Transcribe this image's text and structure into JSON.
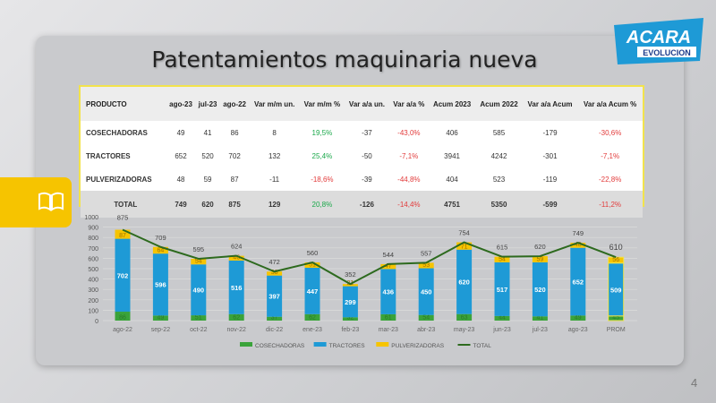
{
  "title": "Patentamientos maquinaria nueva",
  "logo": {
    "text1": "ACARA",
    "text2": "EVOLUCION"
  },
  "page_number": "4",
  "table": {
    "headers": [
      "PRODUCTO",
      "ago-23",
      "jul-23",
      "ago-22",
      "Var m/m un.",
      "Var m/m %",
      "Var a/a un.",
      "Var a/a %",
      "Acum 2023",
      "Acum 2022",
      "Var a/a Acum",
      "Var a/a Acum %"
    ],
    "rows": [
      [
        "COSECHADORAS",
        "49",
        "41",
        "86",
        "8",
        "19,5%",
        "-37",
        "-43,0%",
        "406",
        "585",
        "-179",
        "-30,6%"
      ],
      [
        "TRACTORES",
        "652",
        "520",
        "702",
        "132",
        "25,4%",
        "-50",
        "-7,1%",
        "3941",
        "4242",
        "-301",
        "-7,1%"
      ],
      [
        "PULVERIZADORAS",
        "48",
        "59",
        "87",
        "-11",
        "-18,6%",
        "-39",
        "-44,8%",
        "404",
        "523",
        "-119",
        "-22,8%"
      ],
      [
        "TOTAL",
        "749",
        "620",
        "875",
        "129",
        "20,8%",
        "-126",
        "-14,4%",
        "4751",
        "5350",
        "-599",
        "-11,2%"
      ]
    ]
  },
  "chart_data": {
    "type": "bar",
    "stacked": true,
    "categories": [
      "ago-22",
      "sep-22",
      "oct-22",
      "nov-22",
      "dic-22",
      "ene-23",
      "feb-23",
      "mar-23",
      "abr-23",
      "may-23",
      "jun-23",
      "jul-23",
      "ago-23",
      "PROM"
    ],
    "series": [
      {
        "name": "COSECHADORAS",
        "color": "#3aa33a",
        "values": [
          86,
          49,
          51,
          62,
          37,
          62,
          32,
          61,
          54,
          63,
          44,
          41,
          49,
          45
        ]
      },
      {
        "name": "TRACTORES",
        "color": "#1e9ad6",
        "values": [
          702,
          596,
          490,
          516,
          397,
          447,
          299,
          436,
          450,
          620,
          517,
          520,
          652,
          509
        ]
      },
      {
        "name": "PULVERIZADORAS",
        "color": "#f6c400",
        "values": [
          87,
          64,
          54,
          46,
          38,
          51,
          21,
          47,
          53,
          71,
          54,
          59,
          48,
          56
        ]
      },
      {
        "name": "TOTAL",
        "type": "line",
        "color": "#2d6a1e",
        "values": [
          875,
          709,
          595,
          624,
          472,
          560,
          352,
          544,
          557,
          754,
          615,
          620,
          749,
          610
        ]
      }
    ],
    "ylim": [
      0,
      1000
    ],
    "yticks": [
      0,
      100,
      200,
      300,
      400,
      500,
      600,
      700,
      800,
      900,
      1000
    ],
    "grid": true,
    "legend": "bottom"
  }
}
